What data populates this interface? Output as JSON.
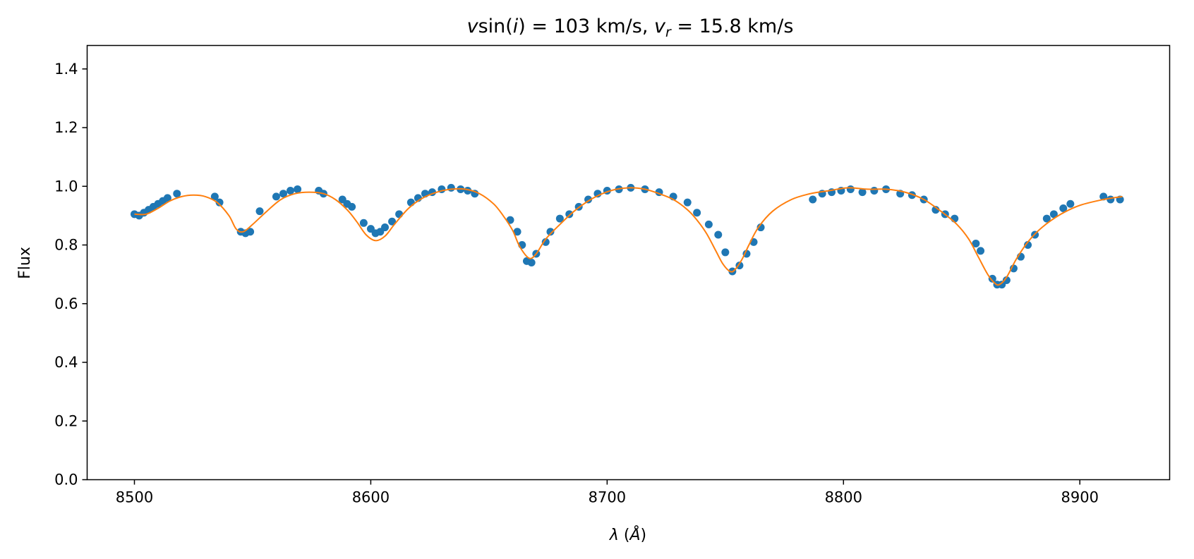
{
  "chart_data": {
    "type": "scatter",
    "title": "vsin(i) = 103 km/s, v_r = 15.8 km/s",
    "title_parts": {
      "v": "v",
      "sin_open": "sin(",
      "i": "i",
      "close_eq": ") = 103 km/s, ",
      "v2": "v",
      "r": "r",
      "rest": " = 15.8 km/s"
    },
    "xlabel": "λ (Å)",
    "xlabel_parts": {
      "lambda": "λ",
      "open": " (",
      "angstrom": "Å",
      "close": ")"
    },
    "ylabel": "Flux",
    "xlim": [
      8480,
      8938
    ],
    "ylim": [
      0.0,
      1.48
    ],
    "xticks": [
      8500,
      8600,
      8700,
      8800,
      8900
    ],
    "yticks": [
      0.0,
      0.2,
      0.4,
      0.6,
      0.8,
      1.0,
      1.2,
      1.4
    ],
    "grid": false,
    "legend": "none",
    "series": [
      {
        "kind": "scatter",
        "color": "#1f77b4",
        "x": [
          8500,
          8502,
          8504,
          8506,
          8508,
          8510,
          8512,
          8514,
          8518,
          8534,
          8536,
          8545,
          8547,
          8549,
          8553,
          8560,
          8563,
          8566,
          8569,
          8578,
          8580,
          8588,
          8590,
          8592,
          8597,
          8600,
          8602,
          8604,
          8606,
          8609,
          8612,
          8617,
          8620,
          8623,
          8626,
          8630,
          8634,
          8638,
          8641,
          8644,
          8659,
          8662,
          8664,
          8666,
          8668,
          8670,
          8674,
          8676,
          8680,
          8684,
          8688,
          8692,
          8696,
          8700,
          8705,
          8710,
          8716,
          8722,
          8728,
          8734,
          8738,
          8743,
          8747,
          8750,
          8753,
          8756,
          8759,
          8762,
          8765,
          8787,
          8791,
          8795,
          8799,
          8803,
          8808,
          8813,
          8818,
          8824,
          8829,
          8834,
          8839,
          8843,
          8847,
          8856,
          8858,
          8863,
          8865,
          8867,
          8869,
          8872,
          8875,
          8878,
          8881,
          8886,
          8889,
          8893,
          8896,
          8910,
          8913,
          8917
        ],
        "y": [
          0.905,
          0.9,
          0.91,
          0.92,
          0.93,
          0.94,
          0.95,
          0.96,
          0.975,
          0.965,
          0.945,
          0.845,
          0.84,
          0.845,
          0.915,
          0.965,
          0.975,
          0.985,
          0.99,
          0.985,
          0.975,
          0.955,
          0.94,
          0.93,
          0.875,
          0.855,
          0.84,
          0.845,
          0.86,
          0.88,
          0.905,
          0.945,
          0.96,
          0.975,
          0.98,
          0.99,
          0.995,
          0.99,
          0.985,
          0.975,
          0.885,
          0.845,
          0.8,
          0.745,
          0.74,
          0.77,
          0.81,
          0.845,
          0.89,
          0.905,
          0.93,
          0.955,
          0.975,
          0.985,
          0.99,
          0.995,
          0.99,
          0.98,
          0.965,
          0.945,
          0.91,
          0.87,
          0.835,
          0.775,
          0.71,
          0.73,
          0.77,
          0.81,
          0.86,
          0.955,
          0.975,
          0.98,
          0.985,
          0.99,
          0.98,
          0.985,
          0.99,
          0.975,
          0.97,
          0.955,
          0.92,
          0.905,
          0.89,
          0.805,
          0.78,
          0.685,
          0.665,
          0.665,
          0.68,
          0.72,
          0.76,
          0.8,
          0.835,
          0.89,
          0.905,
          0.925,
          0.94,
          0.965,
          0.955,
          0.955
        ]
      },
      {
        "kind": "line",
        "color": "#ff7f0e",
        "x": [
          8500,
          8505,
          8510,
          8515,
          8520,
          8525,
          8530,
          8535,
          8540,
          8543,
          8546,
          8550,
          8556,
          8562,
          8568,
          8574,
          8580,
          8585,
          8590,
          8594,
          8598,
          8602,
          8606,
          8610,
          8616,
          8622,
          8628,
          8634,
          8640,
          8646,
          8652,
          8656,
          8660,
          8663,
          8667,
          8670,
          8674,
          8680,
          8686,
          8692,
          8698,
          8704,
          8710,
          8716,
          8722,
          8728,
          8734,
          8738,
          8742,
          8746,
          8749,
          8752,
          8754,
          8757,
          8760,
          8764,
          8770,
          8778,
          8786,
          8794,
          8802,
          8810,
          8818,
          8826,
          8834,
          8842,
          8848,
          8853,
          8857,
          8861,
          8864,
          8866,
          8869,
          8873,
          8878,
          8884,
          8892,
          8900,
          8910,
          8918
        ],
        "y": [
          0.905,
          0.905,
          0.925,
          0.95,
          0.965,
          0.97,
          0.965,
          0.945,
          0.9,
          0.855,
          0.845,
          0.87,
          0.915,
          0.955,
          0.975,
          0.98,
          0.975,
          0.955,
          0.92,
          0.88,
          0.835,
          0.815,
          0.83,
          0.87,
          0.925,
          0.96,
          0.98,
          0.99,
          0.99,
          0.975,
          0.94,
          0.9,
          0.85,
          0.795,
          0.755,
          0.77,
          0.82,
          0.87,
          0.915,
          0.95,
          0.975,
          0.99,
          0.995,
          0.99,
          0.975,
          0.955,
          0.92,
          0.885,
          0.84,
          0.78,
          0.735,
          0.71,
          0.715,
          0.75,
          0.8,
          0.86,
          0.915,
          0.955,
          0.975,
          0.985,
          0.995,
          0.99,
          0.99,
          0.98,
          0.955,
          0.91,
          0.87,
          0.82,
          0.76,
          0.7,
          0.67,
          0.665,
          0.69,
          0.75,
          0.81,
          0.86,
          0.905,
          0.935,
          0.955,
          0.965
        ]
      }
    ]
  }
}
